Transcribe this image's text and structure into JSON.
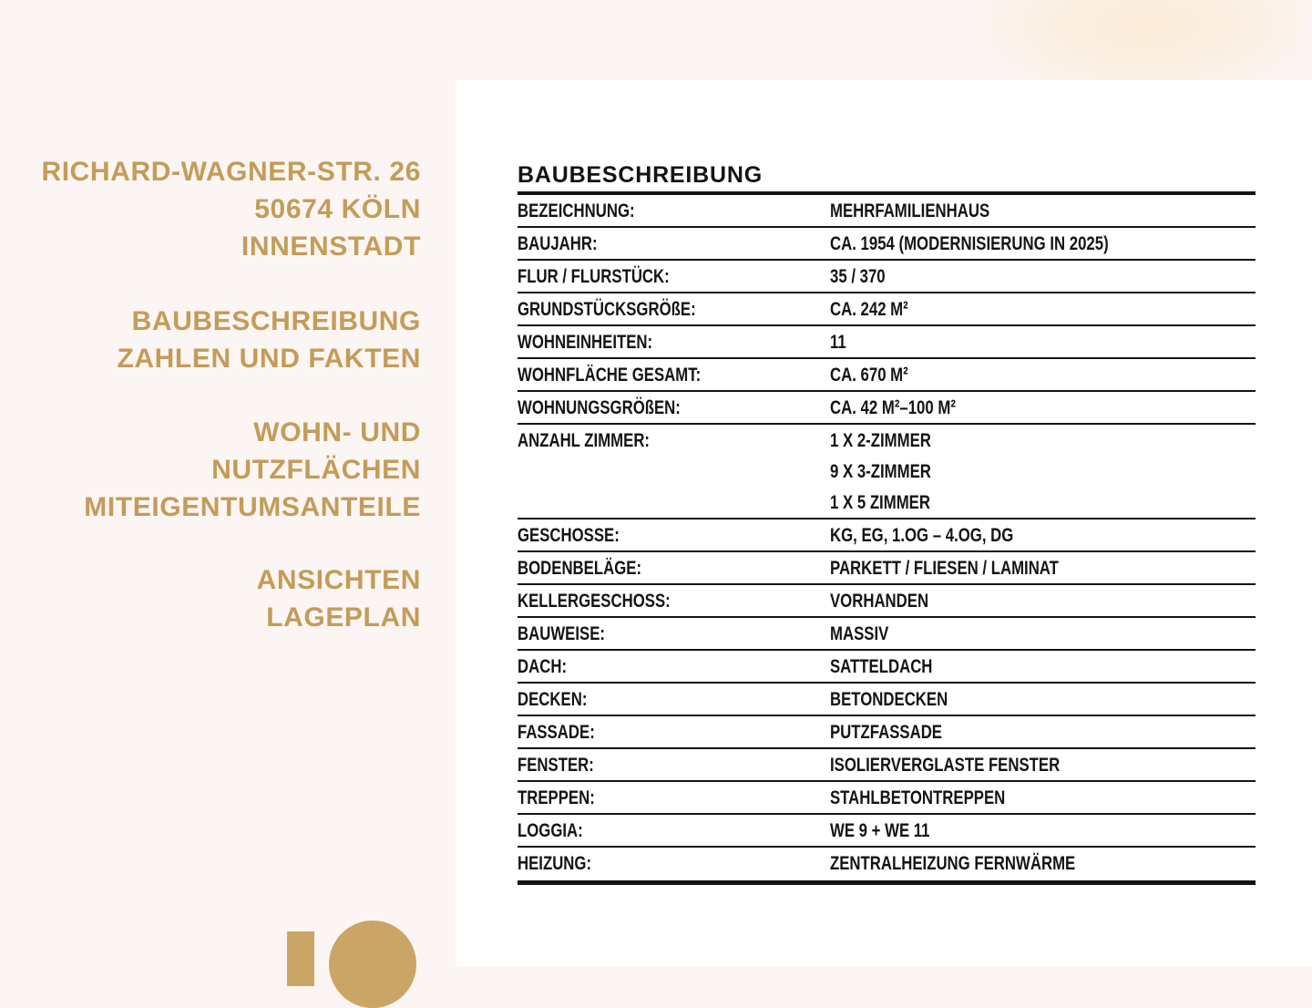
{
  "page": {
    "background_color": "#FBF6F3",
    "panel_color": "#FFFFFF",
    "accent_gold": "#C49B58",
    "number_gold": "#CBA566",
    "text_black": "#141414",
    "page_number": "10"
  },
  "sidebar": {
    "blocks": [
      {
        "lines": [
          "RICHARD-WAGNER-STR. 26",
          "50674 KÖLN",
          "INNENSTADT"
        ]
      },
      {
        "lines": [
          "BAUBESCHREIBUNG",
          "ZAHLEN UND FAKTEN"
        ]
      },
      {
        "lines": [
          "WOHN- UND",
          "NUTZFLÄCHEN",
          "MITEIGENTUMSANTEILE"
        ]
      },
      {
        "lines": [
          "ANSICHTEN",
          "LAGEPLAN"
        ]
      }
    ]
  },
  "table": {
    "title": "BAUBESCHREIBUNG",
    "rows": [
      {
        "label": "BEZEICHNUNG:",
        "values": [
          "MEHRFAMILIENHAUS"
        ]
      },
      {
        "label": "BAUJAHR:",
        "values": [
          "CA. 1954 (MODERNISIERUNG IN 2025)"
        ]
      },
      {
        "label": "FLUR / FLURSTÜCK:",
        "values": [
          "35 / 370"
        ]
      },
      {
        "label": "GRUNDSTÜCKSGRÖßE:",
        "values": [
          "CA. 242 M²"
        ]
      },
      {
        "label": "WOHNEINHEITEN:",
        "values": [
          "11"
        ]
      },
      {
        "label": "WOHNFLÄCHE GESAMT:",
        "values": [
          "CA. 670 M²"
        ]
      },
      {
        "label": "WOHNUNGSGRÖßEN:",
        "values": [
          "CA. 42 M²–100 M²"
        ]
      },
      {
        "label": "ANZAHL ZIMMER:",
        "values": [
          "1 X 2-ZIMMER",
          "9 X 3-ZIMMER",
          "1 X 5 ZIMMER"
        ]
      },
      {
        "label": "GESCHOSSE:",
        "values": [
          "KG, EG, 1.OG – 4.OG, DG"
        ]
      },
      {
        "label": "BODENBELÄGE:",
        "values": [
          "PARKETT / FLIESEN / LAMINAT"
        ]
      },
      {
        "label": "KELLERGESCHOSS:",
        "values": [
          "VORHANDEN"
        ]
      },
      {
        "label": "BAUWEISE:",
        "values": [
          "MASSIV"
        ]
      },
      {
        "label": "DACH:",
        "values": [
          "SATTELDACH"
        ]
      },
      {
        "label": "DECKEN:",
        "values": [
          "BETONDECKEN"
        ]
      },
      {
        "label": "FASSADE:",
        "values": [
          "PUTZFASSADE"
        ]
      },
      {
        "label": "FENSTER:",
        "values": [
          "ISOLIERVERGLASTE FENSTER"
        ]
      },
      {
        "label": "TREPPEN:",
        "values": [
          "STAHLBETONTREPPEN"
        ]
      },
      {
        "label": "LOGGIA:",
        "values": [
          "WE 9 + WE 11"
        ]
      },
      {
        "label": "HEIZUNG:",
        "values": [
          "ZENTRALHEIZUNG FERNWÄRME"
        ]
      }
    ]
  }
}
